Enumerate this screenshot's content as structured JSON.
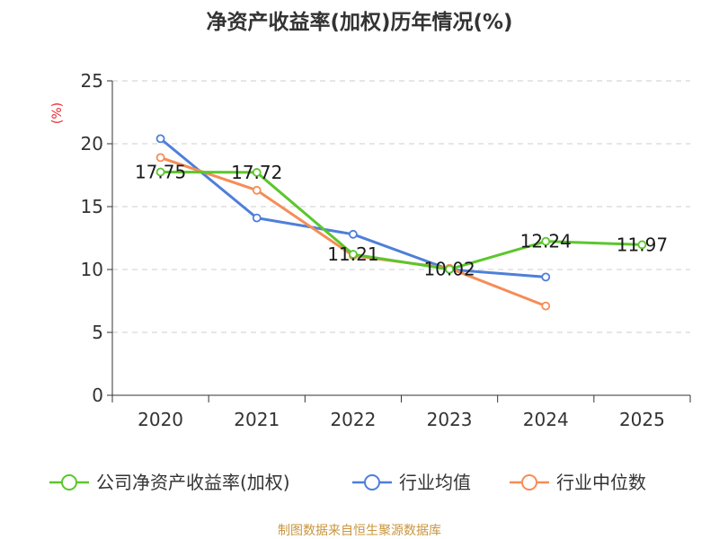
{
  "chart_data": {
    "type": "line",
    "title": "净资产收益率(加权)历年情况(%)",
    "ylabel": "(%)",
    "xlabel": "",
    "categories": [
      "2020",
      "2021",
      "2022",
      "2023",
      "2024",
      "2025"
    ],
    "ylim": [
      0,
      25
    ],
    "yticks": [
      0,
      5,
      10,
      15,
      20,
      25
    ],
    "grid": true,
    "legend_position": "bottom",
    "series": [
      {
        "name": "公司净资产收益率(加权)",
        "color": "#5cc62c",
        "values": [
          17.75,
          17.72,
          11.21,
          10.02,
          12.24,
          11.97
        ],
        "labels": [
          "17.75",
          "17.72",
          "11.21",
          "10.02",
          "12.24",
          "11.97"
        ]
      },
      {
        "name": "行业均值",
        "color": "#4e7fd9",
        "values": [
          20.4,
          14.1,
          12.8,
          10.0,
          9.4,
          null
        ]
      },
      {
        "name": "行业中位数",
        "color": "#f58d57",
        "values": [
          18.9,
          16.3,
          11.1,
          10.1,
          7.1,
          null
        ]
      }
    ],
    "source": "制图数据来自恒生聚源数据库"
  }
}
